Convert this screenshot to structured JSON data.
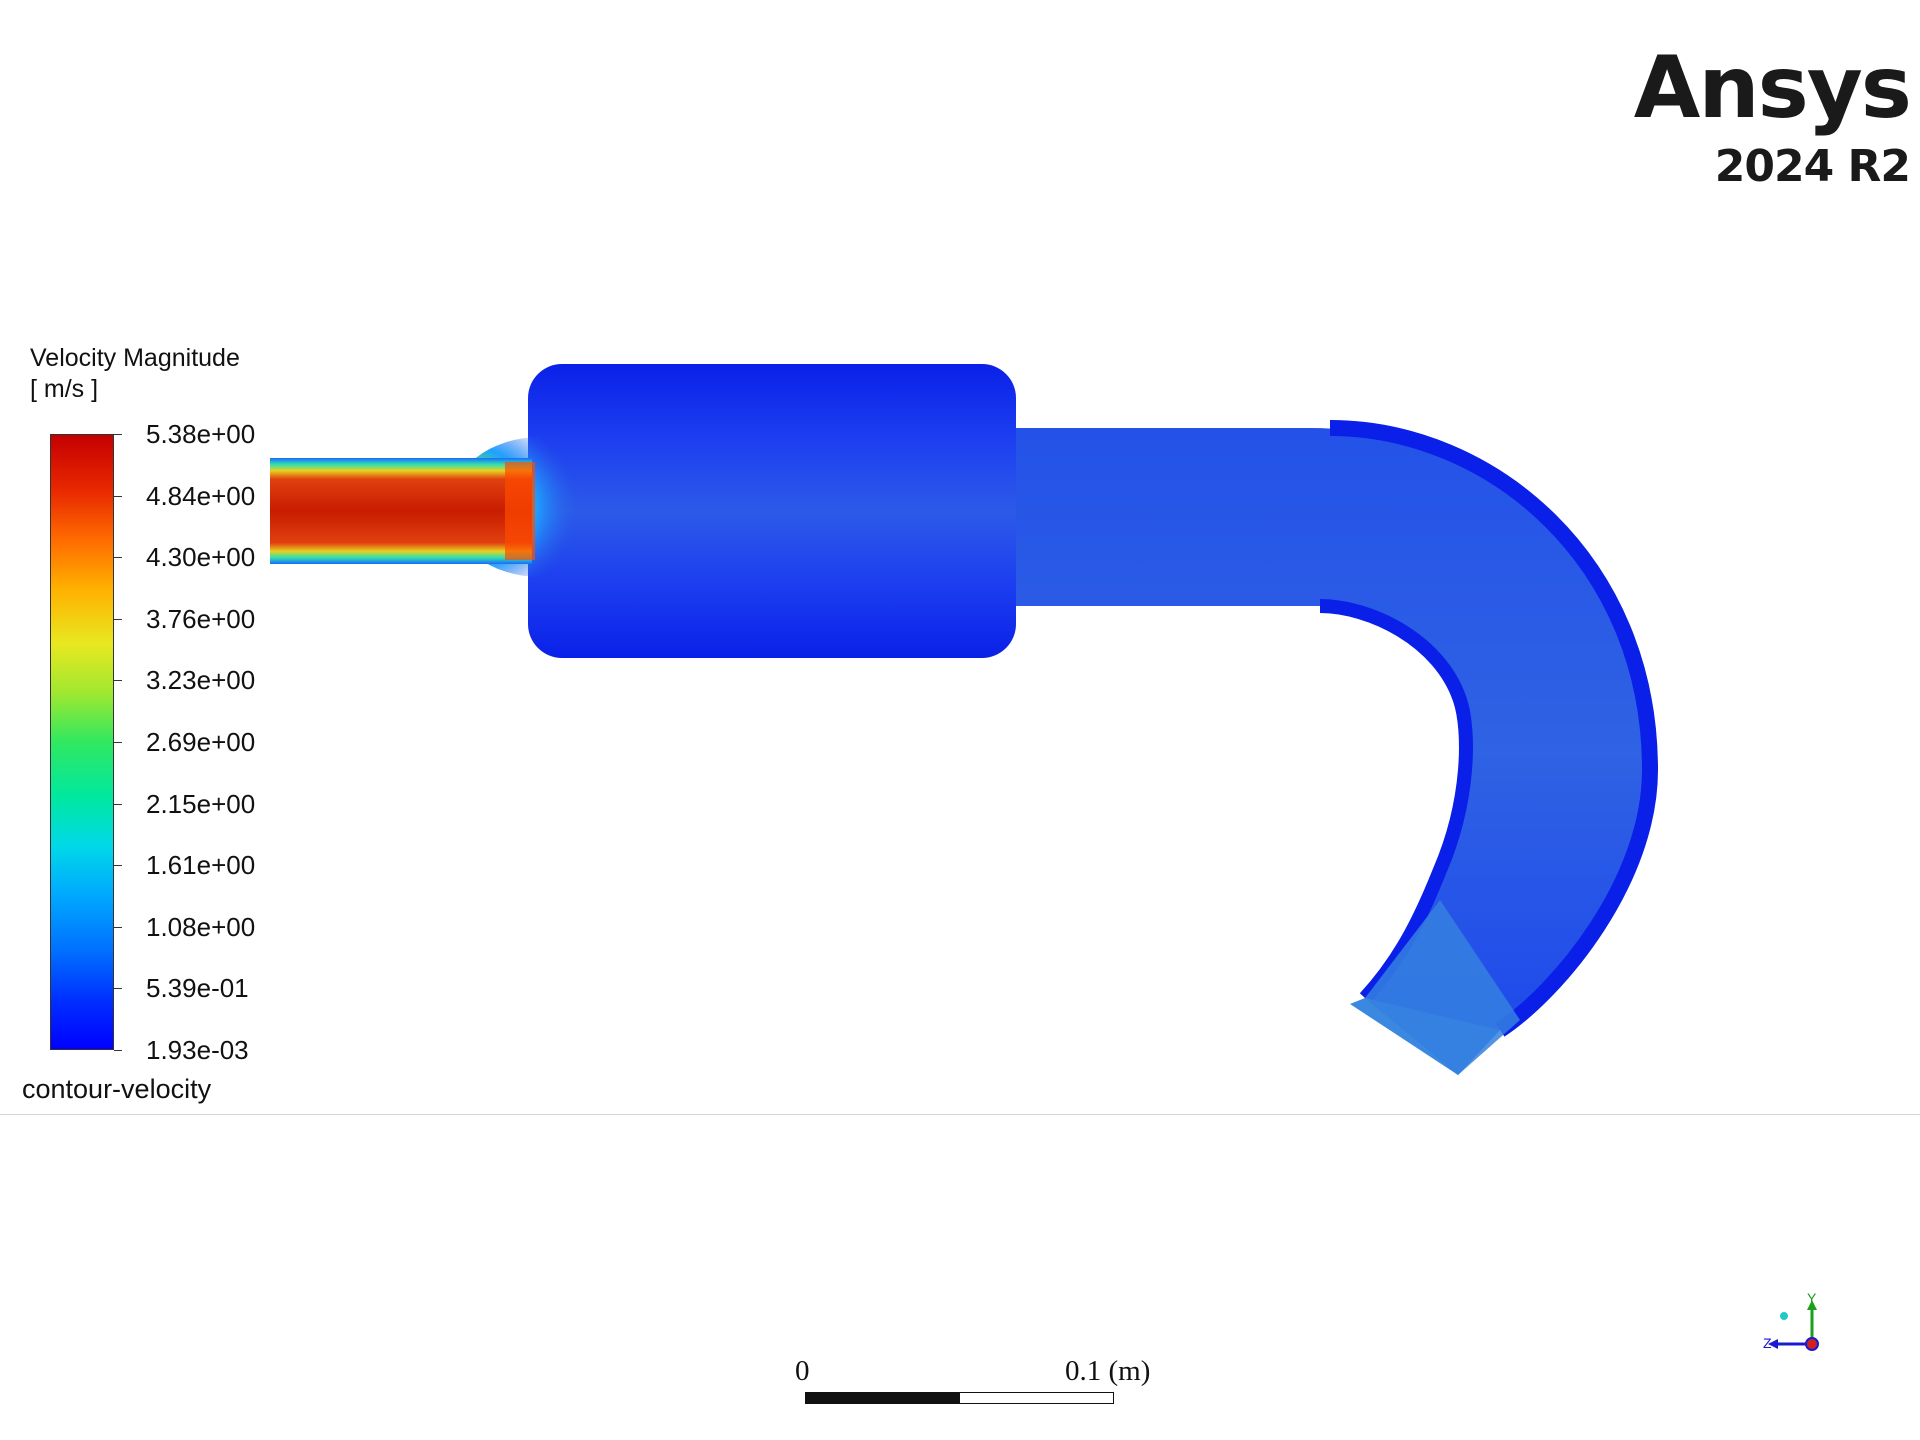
{
  "logo": {
    "brand": "Ansys",
    "version": "2024 R2"
  },
  "legend": {
    "title": "Velocity Magnitude",
    "unit": "[ m/s ]",
    "labels": [
      "5.38e+00",
      "4.84e+00",
      "4.30e+00",
      "3.76e+00",
      "3.23e+00",
      "2.69e+00",
      "2.15e+00",
      "1.61e+00",
      "1.08e+00",
      "5.39e-01",
      "1.93e-03"
    ],
    "name": "contour-velocity",
    "colormap": [
      "#0000ff",
      "#00a8ff",
      "#30e860",
      "#e8e820",
      "#ff6a00",
      "#c40000"
    ]
  },
  "scale_bar": {
    "start": "0",
    "end": "0.1 (m)"
  },
  "triad": {
    "z": "Z",
    "y": "Y"
  },
  "colors": {
    "low": "#0a1fe8",
    "body": "#2a5ae6",
    "outlet": "#3a88e0",
    "high": "#d21c00"
  }
}
